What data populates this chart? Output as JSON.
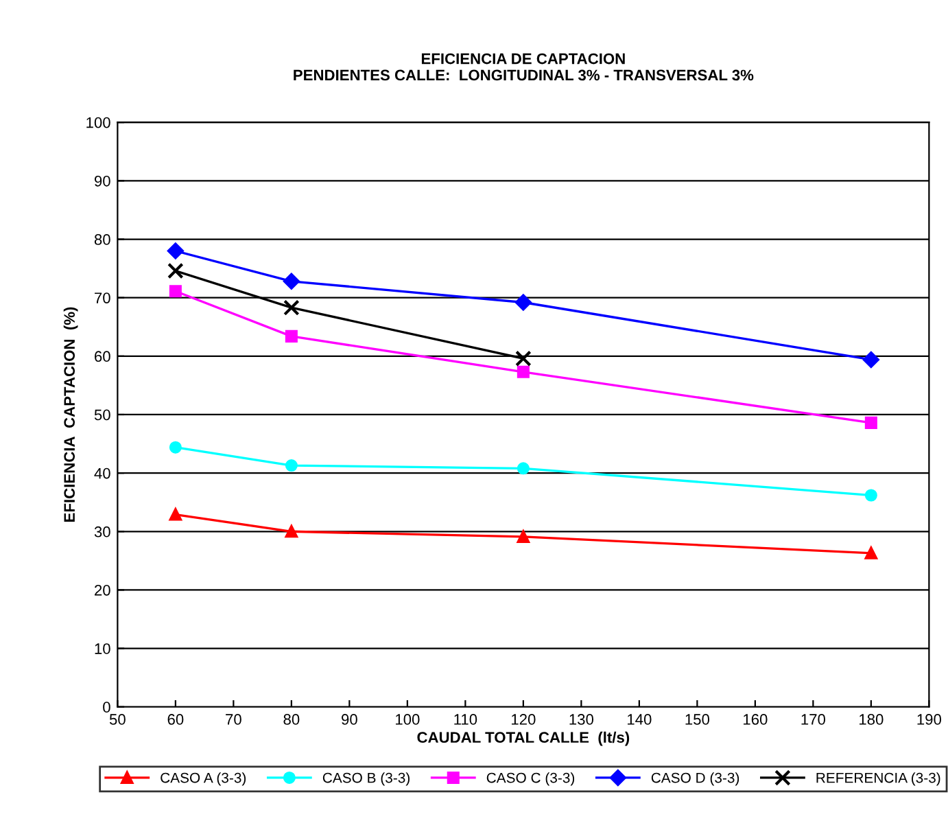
{
  "chart_data": {
    "type": "line",
    "title": "EFICIENCIA DE CAPTACION\nPENDIENTES CALLE:  LONGITUDINAL 3% - TRANSVERSAL 3%",
    "xlabel": "CAUDAL TOTAL CALLE  (lt/s)",
    "ylabel": "EFICIENCIA  CAPTACION  (%)",
    "xlim": [
      50,
      190
    ],
    "xticks": [
      50,
      60,
      70,
      80,
      90,
      100,
      110,
      120,
      130,
      140,
      150,
      160,
      170,
      180,
      190
    ],
    "ylim": [
      0,
      100
    ],
    "yticks": [
      0,
      10,
      20,
      30,
      40,
      50,
      60,
      70,
      80,
      90,
      100
    ],
    "grid": "y",
    "legend": "bottom",
    "series": [
      {
        "name": "CASO A (3-3)",
        "color": "#ff0000",
        "marker": "triangle",
        "x": [
          60,
          80,
          120,
          180
        ],
        "values": [
          32.9,
          30,
          29.1,
          26.3
        ]
      },
      {
        "name": "CASO B (3-3)",
        "color": "#00ffff",
        "marker": "circle",
        "x": [
          60,
          80,
          120,
          180
        ],
        "values": [
          44.4,
          41.3,
          40.8,
          36.2
        ]
      },
      {
        "name": "CASO C (3-3)",
        "color": "#ff00ff",
        "marker": "square",
        "x": [
          60,
          80,
          120,
          180
        ],
        "values": [
          71.1,
          63.4,
          57.3,
          48.6
        ]
      },
      {
        "name": "CASO D (3-3)",
        "color": "#0000ff",
        "marker": "diamond",
        "x": [
          60,
          80,
          120,
          180
        ],
        "values": [
          78,
          72.8,
          69.2,
          59.4
        ]
      },
      {
        "name": "REFERENCIA (3-3)",
        "color": "#000000",
        "marker": "cross",
        "x": [
          60,
          80,
          120
        ],
        "values": [
          74.6,
          68.3,
          59.6
        ]
      }
    ]
  }
}
